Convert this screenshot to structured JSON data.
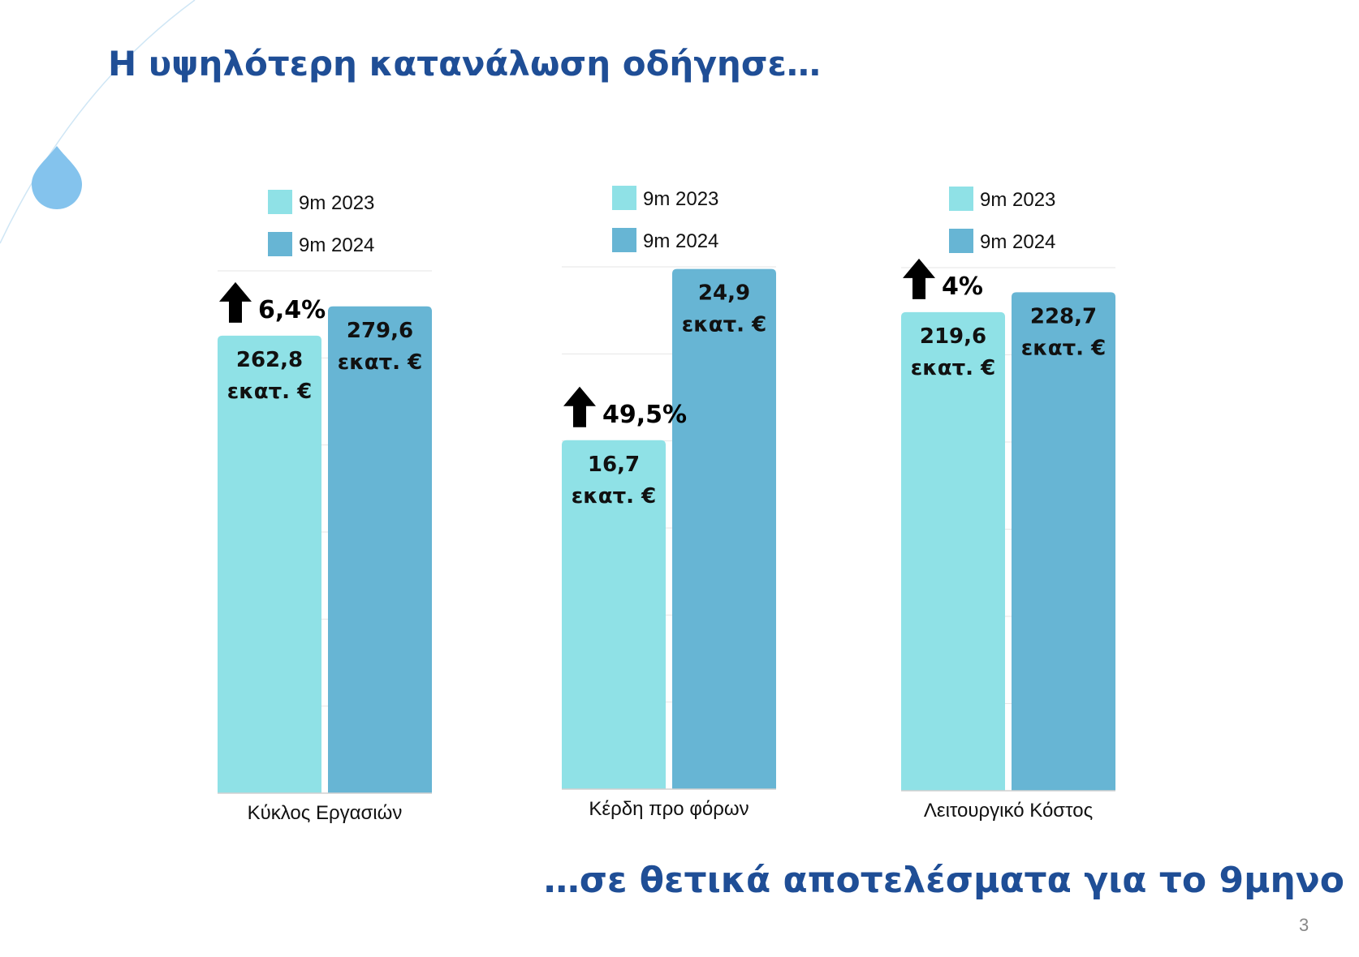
{
  "title_top": "Η υψηλότερη κατανάλωση οδήγησε…",
  "title_bottom": "…σε θετικά αποτελέσματα για το 9μηνο",
  "page_number": "3",
  "colors": {
    "title": "#1f4e96",
    "series_2023": "#8fe1e6",
    "series_2024": "#67b5d4",
    "drop": "#84c3ed"
  },
  "chart_data": [
    {
      "type": "bar",
      "categories": [
        "Κύκλος Εργασιών"
      ],
      "series": [
        {
          "name": "9m 2023",
          "values": [
            262.8
          ],
          "label": [
            "262,8",
            "εκατ. €"
          ]
        },
        {
          "name": "9m 2024",
          "values": [
            279.6
          ],
          "label": [
            "279,6",
            "εκατ. €"
          ]
        }
      ],
      "change": "6,4%",
      "ylim": [
        0,
        300
      ],
      "legend": "top"
    },
    {
      "type": "bar",
      "categories": [
        "Κέρδη προ φόρων"
      ],
      "series": [
        {
          "name": "9m 2023",
          "values": [
            16.7
          ],
          "label": [
            "16,7",
            "εκατ. €"
          ]
        },
        {
          "name": "9m 2024",
          "values": [
            24.9
          ],
          "label": [
            "24,9",
            "εκατ. €"
          ]
        }
      ],
      "change": "49,5%",
      "ylim": [
        0,
        25
      ],
      "legend": "top"
    },
    {
      "type": "bar",
      "categories": [
        "Λειτουργικό Κόστος"
      ],
      "series": [
        {
          "name": "9m 2023",
          "values": [
            219.6
          ],
          "label": [
            "219,6",
            "εκατ. €"
          ]
        },
        {
          "name": "9m 2024",
          "values": [
            228.7
          ],
          "label": [
            "228,7",
            "εκατ. €"
          ]
        }
      ],
      "change": "4%",
      "ylim": [
        0,
        240
      ],
      "legend": "top"
    }
  ]
}
